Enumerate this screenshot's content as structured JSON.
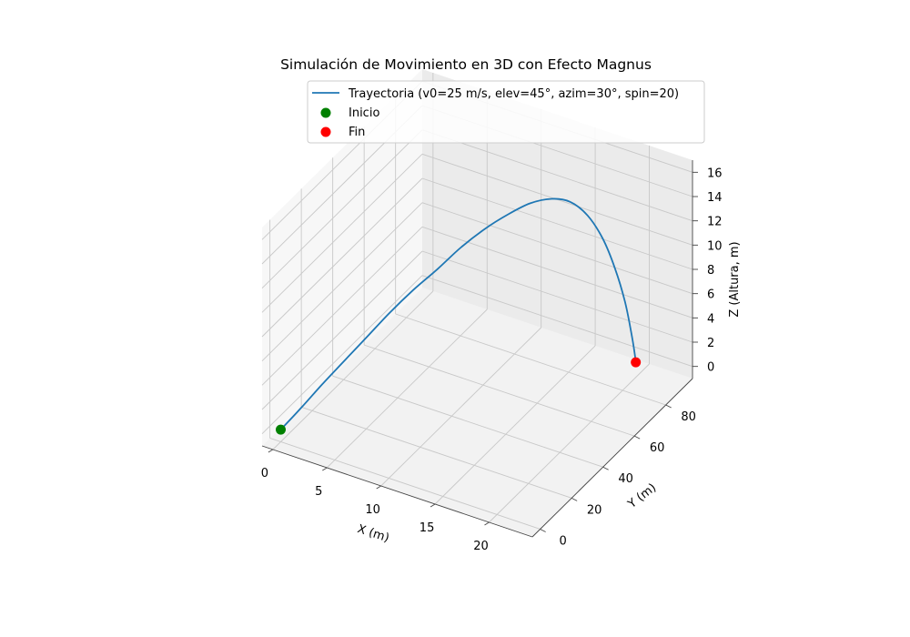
{
  "chart_data": {
    "type": "line3d",
    "title": "Simulación de Movimiento en 3D con Efecto Magnus",
    "xlabel": "X (m)",
    "ylabel": "Y (m)",
    "zlabel": "Z (Altura, m)",
    "x_ticks": [
      "0",
      "5",
      "10",
      "15",
      "20"
    ],
    "y_ticks": [
      "0",
      "20",
      "40",
      "60",
      "80"
    ],
    "z_ticks": [
      "0",
      "2",
      "4",
      "6",
      "8",
      "10",
      "12",
      "14",
      "16"
    ],
    "xlim": [
      -1,
      24
    ],
    "ylim": [
      -5,
      97
    ],
    "zlim": [
      -1,
      17
    ],
    "grid": true,
    "legend_position": "top-right",
    "series": [
      {
        "name": "Trayectoria (v0=25 m/s, elev=45°, azim=30°, spin=20)",
        "type": "line",
        "color": "#1f77b4",
        "points": [
          [
            0.0,
            0.0,
            0.0
          ],
          [
            1.5,
            2.5,
            1.9
          ],
          [
            3.0,
            5.6,
            3.9
          ],
          [
            4.5,
            9.2,
            5.8
          ],
          [
            6.0,
            13.5,
            7.7
          ],
          [
            7.4,
            18.4,
            9.5
          ],
          [
            8.8,
            23.8,
            11.1
          ],
          [
            10.2,
            29.8,
            12.5
          ],
          [
            11.4,
            36.2,
            13.8
          ],
          [
            12.6,
            43.0,
            14.8
          ],
          [
            13.8,
            50.0,
            15.5
          ],
          [
            14.8,
            57.0,
            15.8
          ],
          [
            15.8,
            63.8,
            15.6
          ],
          [
            16.6,
            70.0,
            14.8
          ],
          [
            17.4,
            75.6,
            13.2
          ],
          [
            18.1,
            80.4,
            10.9
          ],
          [
            18.7,
            84.2,
            8.1
          ],
          [
            19.2,
            87.0,
            5.2
          ],
          [
            19.5,
            88.8,
            2.6
          ],
          [
            19.7,
            89.6,
            0.9
          ],
          [
            19.8,
            89.8,
            0.0
          ]
        ]
      },
      {
        "name": "Inicio",
        "type": "scatter",
        "color": "#008000",
        "points": [
          [
            0.0,
            0.0,
            0.0
          ]
        ]
      },
      {
        "name": "Fin",
        "type": "scatter",
        "color": "#ff0000",
        "points": [
          [
            19.8,
            89.8,
            0.0
          ]
        ]
      }
    ]
  }
}
